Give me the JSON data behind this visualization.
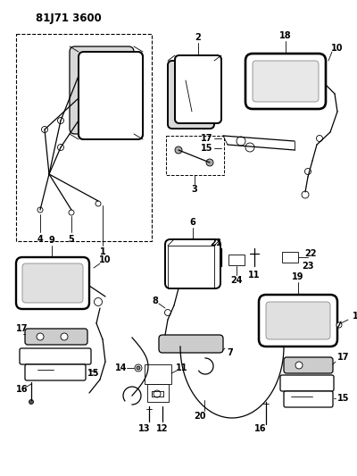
{
  "title": "81J71 3600",
  "bg_color": "#ffffff",
  "line_color": "#000000",
  "fig_width": 4.0,
  "fig_height": 5.33,
  "dpi": 100
}
